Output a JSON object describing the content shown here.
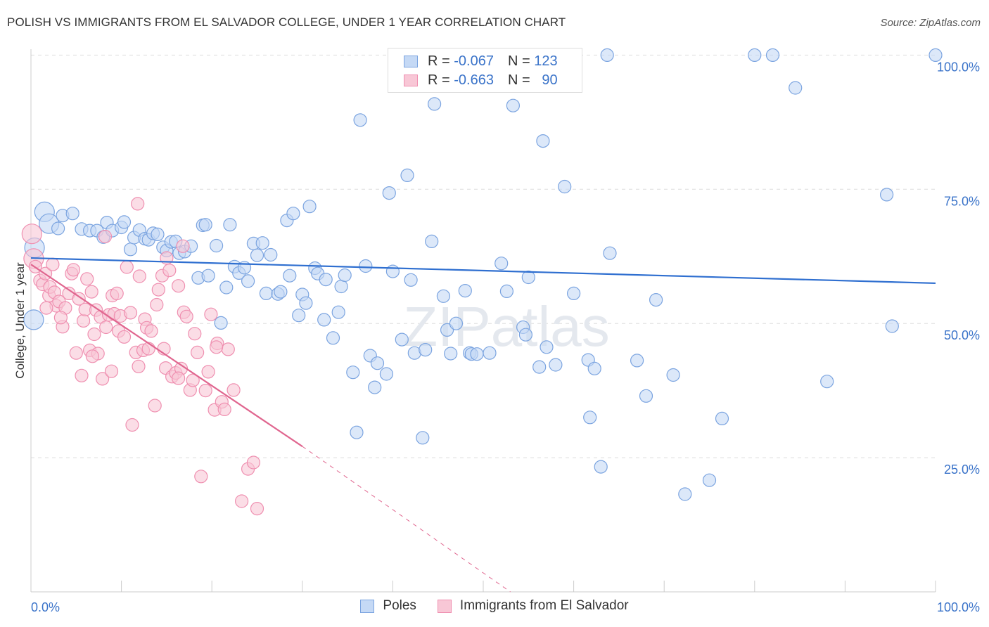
{
  "title": "POLISH VS IMMIGRANTS FROM EL SALVADOR COLLEGE, UNDER 1 YEAR CORRELATION CHART",
  "source": "Source: ZipAtlas.com",
  "watermark": "ZIPatlas",
  "legend": {
    "rows": [
      {
        "r_label": "R =",
        "r_value": "-0.067",
        "n_label": "N =",
        "n_value": "123"
      },
      {
        "r_label": "R =",
        "r_value": "-0.663",
        "n_label": "N =",
        "n_value": "90"
      }
    ]
  },
  "colors": {
    "poles_fill": "#c5d9f5",
    "poles_stroke": "#7ba4e0",
    "poles_line": "#2f6fd0",
    "salv_fill": "#f8c7d6",
    "salv_stroke": "#ef8fb0",
    "salv_line": "#e0668f",
    "grid": "#dddddd",
    "tick_label": "#3a73c9"
  },
  "chart_data": {
    "type": "scatter",
    "title": "POLISH VS IMMIGRANTS FROM EL SALVADOR COLLEGE, UNDER 1 YEAR CORRELATION CHART",
    "xlabel": "",
    "ylabel": "College, Under 1 year",
    "xlim": [
      0,
      100
    ],
    "ylim": [
      0,
      102
    ],
    "x_tick_labels": [
      "0.0%",
      "100.0%"
    ],
    "y_ticks": [
      25,
      50,
      75,
      100
    ],
    "y_tick_labels": [
      "25.0%",
      "50.0%",
      "75.0%",
      "100.0%"
    ],
    "grid": true,
    "legend_position": "bottom",
    "series": [
      {
        "name": "Poles",
        "r": -0.067,
        "n": 123,
        "trend": {
          "x": [
            0,
            100
          ],
          "y": [
            62.2,
            57.5
          ]
        },
        "points": [
          [
            0.4,
            64.1
          ],
          [
            0.3,
            50.7
          ],
          [
            1.5,
            70.8
          ],
          [
            2.0,
            68.6
          ],
          [
            3.5,
            70.1
          ],
          [
            3.0,
            67.7
          ],
          [
            4.6,
            70.5
          ],
          [
            5.6,
            67.6
          ],
          [
            6.5,
            67.3
          ],
          [
            7.3,
            67.3
          ],
          [
            8.0,
            66.1
          ],
          [
            8.4,
            68.8
          ],
          [
            9.0,
            67.3
          ],
          [
            10.0,
            67.9
          ],
          [
            10.3,
            68.9
          ],
          [
            11.0,
            63.8
          ],
          [
            11.4,
            66.0
          ],
          [
            12.0,
            67.4
          ],
          [
            12.6,
            65.8
          ],
          [
            13.0,
            65.6
          ],
          [
            13.5,
            66.8
          ],
          [
            14.0,
            66.6
          ],
          [
            14.6,
            64.2
          ],
          [
            15.0,
            63.6
          ],
          [
            15.5,
            65.2
          ],
          [
            16.0,
            65.3
          ],
          [
            16.4,
            63.1
          ],
          [
            17.0,
            63.4
          ],
          [
            17.7,
            64.4
          ],
          [
            18.5,
            58.5
          ],
          [
            19.0,
            68.3
          ],
          [
            19.3,
            68.4
          ],
          [
            19.6,
            58.9
          ],
          [
            20.5,
            64.5
          ],
          [
            21.0,
            50.1
          ],
          [
            21.6,
            56.7
          ],
          [
            22.0,
            68.4
          ],
          [
            22.5,
            60.6
          ],
          [
            23.0,
            59.4
          ],
          [
            23.6,
            60.4
          ],
          [
            24.0,
            57.9
          ],
          [
            24.6,
            64.9
          ],
          [
            25.0,
            62.7
          ],
          [
            25.6,
            65.0
          ],
          [
            26.0,
            55.6
          ],
          [
            26.5,
            62.8
          ],
          [
            27.3,
            55.5
          ],
          [
            27.6,
            55.9
          ],
          [
            28.3,
            69.2
          ],
          [
            28.6,
            58.9
          ],
          [
            29.0,
            70.5
          ],
          [
            29.6,
            51.5
          ],
          [
            30.0,
            55.4
          ],
          [
            30.4,
            53.8
          ],
          [
            30.8,
            71.8
          ],
          [
            31.4,
            60.3
          ],
          [
            31.7,
            59.3
          ],
          [
            32.4,
            50.7
          ],
          [
            32.6,
            58.2
          ],
          [
            33.4,
            47.3
          ],
          [
            34.0,
            52.1
          ],
          [
            34.3,
            56.9
          ],
          [
            34.7,
            59.0
          ],
          [
            35.6,
            40.9
          ],
          [
            36.0,
            29.7
          ],
          [
            36.4,
            87.9
          ],
          [
            37.0,
            60.7
          ],
          [
            37.5,
            44.0
          ],
          [
            38.0,
            38.1
          ],
          [
            38.3,
            42.6
          ],
          [
            39.3,
            40.6
          ],
          [
            39.6,
            74.3
          ],
          [
            40.0,
            59.7
          ],
          [
            41.0,
            47.0
          ],
          [
            41.6,
            77.6
          ],
          [
            42.0,
            58.1
          ],
          [
            42.4,
            44.5
          ],
          [
            43.3,
            28.7
          ],
          [
            43.6,
            45.1
          ],
          [
            44.3,
            65.3
          ],
          [
            44.6,
            90.9
          ],
          [
            45.6,
            55.1
          ],
          [
            46.0,
            48.8
          ],
          [
            46.4,
            44.4
          ],
          [
            47.0,
            50.0
          ],
          [
            48.0,
            56.1
          ],
          [
            48.5,
            44.5
          ],
          [
            48.7,
            44.3
          ],
          [
            49.3,
            44.3
          ],
          [
            50.7,
            44.5
          ],
          [
            51.3,
            100.0
          ],
          [
            52.0,
            61.2
          ],
          [
            52.6,
            56.0
          ],
          [
            53.3,
            90.6
          ],
          [
            54.4,
            49.3
          ],
          [
            54.7,
            47.9
          ],
          [
            55.0,
            58.6
          ],
          [
            56.2,
            41.9
          ],
          [
            56.6,
            84.0
          ],
          [
            57.0,
            45.6
          ],
          [
            58.0,
            42.3
          ],
          [
            59.0,
            75.5
          ],
          [
            60.0,
            55.6
          ],
          [
            61.6,
            43.2
          ],
          [
            61.8,
            32.5
          ],
          [
            62.3,
            41.6
          ],
          [
            63.7,
            100.0
          ],
          [
            63.0,
            23.3
          ],
          [
            64.0,
            63.1
          ],
          [
            67.0,
            43.1
          ],
          [
            68.0,
            36.5
          ],
          [
            69.1,
            54.4
          ],
          [
            71.0,
            40.4
          ],
          [
            72.3,
            18.2
          ],
          [
            75.0,
            20.8
          ],
          [
            76.4,
            32.3
          ],
          [
            80.0,
            100.0
          ],
          [
            82.0,
            100.0
          ],
          [
            84.5,
            93.9
          ],
          [
            88.0,
            39.2
          ],
          [
            94.6,
            74.0
          ],
          [
            95.2,
            49.5
          ],
          [
            100.0,
            100.0
          ]
        ]
      },
      {
        "name": "Immigrants from El Salvador",
        "r": -0.663,
        "n": 90,
        "trend": {
          "x": [
            0,
            30
          ],
          "y": [
            61.0,
            27.1
          ]
        },
        "trend_dashed": {
          "x": [
            30,
            53
          ],
          "y": [
            27.1,
            0
          ]
        },
        "points": [
          [
            0.1,
            66.7
          ],
          [
            0.3,
            62.1
          ],
          [
            0.5,
            60.6
          ],
          [
            1.0,
            58.0
          ],
          [
            1.3,
            57.3
          ],
          [
            1.6,
            59.3
          ],
          [
            2.0,
            55.2
          ],
          [
            2.1,
            56.8
          ],
          [
            2.4,
            61.0
          ],
          [
            2.6,
            55.8
          ],
          [
            2.8,
            53.3
          ],
          [
            3.1,
            54.1
          ],
          [
            3.5,
            49.4
          ],
          [
            3.8,
            52.9
          ],
          [
            4.2,
            55.6
          ],
          [
            4.5,
            59.3
          ],
          [
            4.7,
            60.0
          ],
          [
            5.0,
            44.5
          ],
          [
            5.3,
            54.6
          ],
          [
            5.6,
            40.3
          ],
          [
            5.8,
            50.5
          ],
          [
            6.0,
            52.6
          ],
          [
            6.2,
            58.3
          ],
          [
            6.5,
            45.0
          ],
          [
            6.7,
            55.9
          ],
          [
            7.0,
            48.0
          ],
          [
            7.2,
            52.5
          ],
          [
            7.4,
            44.4
          ],
          [
            7.7,
            51.2
          ],
          [
            7.9,
            39.7
          ],
          [
            8.2,
            66.2
          ],
          [
            8.3,
            49.3
          ],
          [
            8.6,
            51.6
          ],
          [
            8.9,
            41.1
          ],
          [
            9.0,
            55.2
          ],
          [
            9.2,
            51.8
          ],
          [
            9.5,
            55.6
          ],
          [
            9.7,
            48.6
          ],
          [
            9.9,
            51.4
          ],
          [
            10.3,
            47.5
          ],
          [
            10.6,
            60.5
          ],
          [
            11.0,
            52.0
          ],
          [
            11.2,
            31.1
          ],
          [
            11.6,
            44.6
          ],
          [
            11.9,
            42.0
          ],
          [
            12.0,
            58.8
          ],
          [
            12.4,
            45.0
          ],
          [
            12.6,
            50.8
          ],
          [
            12.8,
            49.2
          ],
          [
            13.0,
            45.3
          ],
          [
            13.3,
            48.6
          ],
          [
            13.7,
            34.7
          ],
          [
            13.9,
            53.5
          ],
          [
            14.1,
            56.3
          ],
          [
            14.5,
            58.9
          ],
          [
            14.7,
            45.3
          ],
          [
            14.9,
            41.7
          ],
          [
            15.3,
            59.9
          ],
          [
            15.6,
            40.1
          ],
          [
            16.0,
            40.8
          ],
          [
            16.3,
            57.0
          ],
          [
            16.6,
            41.6
          ],
          [
            16.9,
            52.1
          ],
          [
            17.2,
            51.3
          ],
          [
            17.6,
            37.6
          ],
          [
            17.9,
            39.4
          ],
          [
            18.1,
            48.1
          ],
          [
            18.4,
            44.6
          ],
          [
            18.8,
            21.5
          ],
          [
            19.3,
            37.5
          ],
          [
            19.6,
            41.0
          ],
          [
            19.9,
            51.7
          ],
          [
            20.3,
            33.9
          ],
          [
            20.6,
            46.3
          ],
          [
            21.1,
            35.4
          ],
          [
            21.4,
            34.0
          ],
          [
            21.8,
            45.2
          ],
          [
            22.4,
            37.6
          ],
          [
            23.3,
            16.9
          ],
          [
            24.0,
            22.9
          ],
          [
            24.6,
            24.1
          ],
          [
            25.0,
            15.5
          ],
          [
            15.0,
            62.2
          ],
          [
            11.8,
            72.3
          ],
          [
            6.8,
            43.9
          ],
          [
            3.3,
            51.1
          ],
          [
            1.7,
            52.9
          ],
          [
            16.8,
            64.4
          ],
          [
            20.5,
            45.6
          ],
          [
            16.3,
            39.8
          ]
        ]
      }
    ]
  },
  "bottom_legend": [
    {
      "label": "Poles"
    },
    {
      "label": "Immigrants from El Salvador"
    }
  ]
}
